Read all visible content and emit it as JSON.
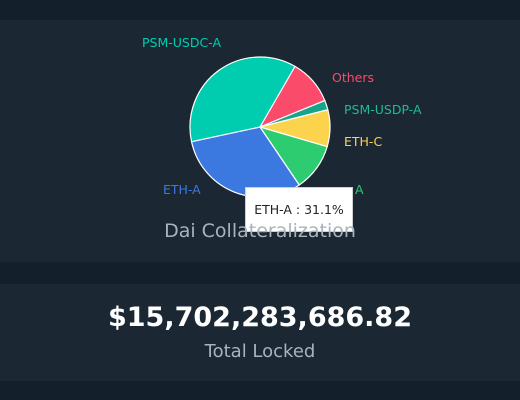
{
  "collateral_card": {
    "caption": "Dai Collateralization",
    "tooltip": {
      "name": "ETH-A",
      "separator": " : ",
      "value": "31.1%"
    }
  },
  "chart_data": {
    "type": "pie",
    "slices": [
      {
        "label": "Others",
        "value": 10.5,
        "color": "#fb4b6b"
      },
      {
        "label": "PSM-USDP-A",
        "value": 2.2,
        "color": "#17a589"
      },
      {
        "label": "ETH-C",
        "value": 8.5,
        "color": "#fcd34d"
      },
      {
        "label": "ETH-B",
        "value": 11.0,
        "color": "#2ecc71"
      },
      {
        "label": "ETH-A",
        "value": 31.1,
        "color": "#3b78e0"
      },
      {
        "label": "PSM-USDC-A",
        "value": 36.7,
        "color": "#00cdb0"
      }
    ],
    "visible_labels": [
      "Others",
      "PSM-USDP-A",
      "ETH-C",
      "A",
      "ETH-A",
      "PSM-USDC-A"
    ],
    "start_angle_deg": -60,
    "direction": "clockwise"
  },
  "total_card": {
    "value": "$15,702,283,686.82",
    "label": "Total Locked"
  }
}
